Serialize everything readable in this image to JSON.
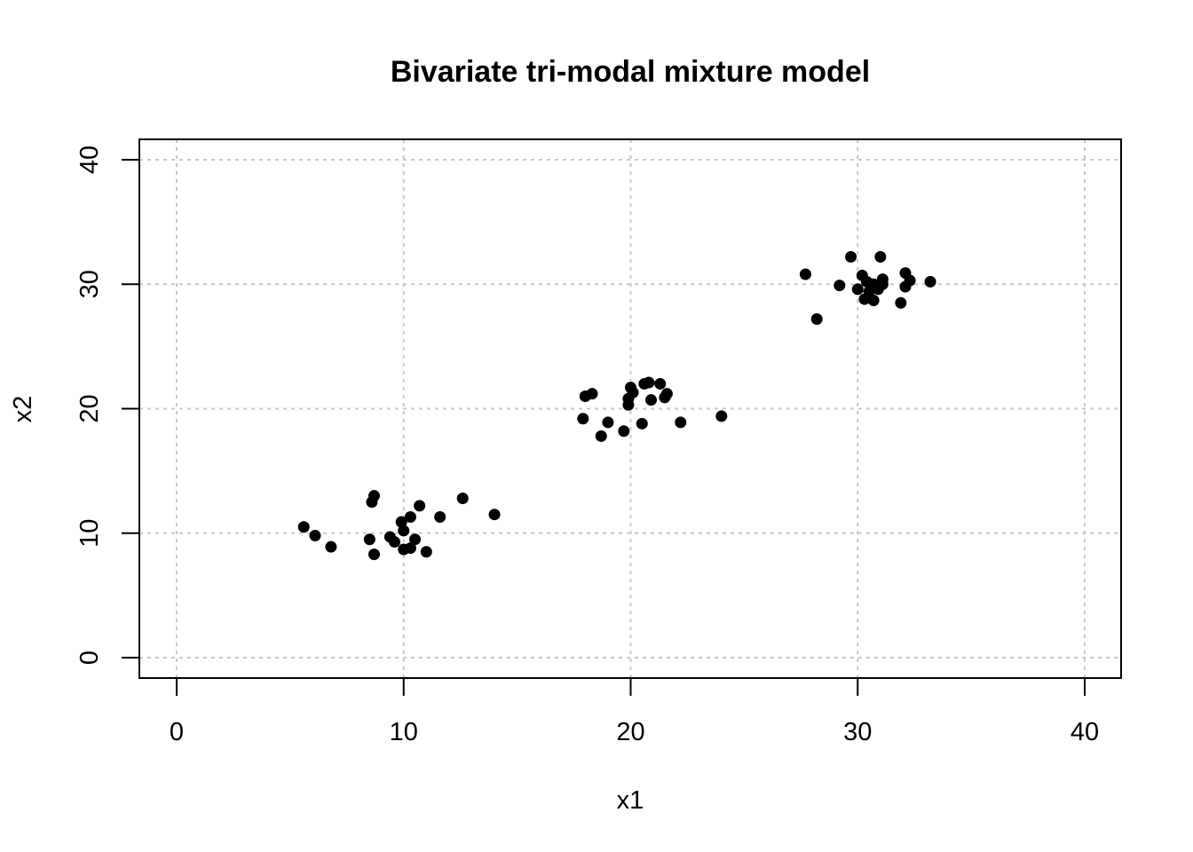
{
  "chart_data": {
    "type": "scatter",
    "title": "Bivariate tri-modal mixture model",
    "xlabel": "x1",
    "ylabel": "x2",
    "xlim": [
      0,
      40
    ],
    "ylim": [
      0,
      40
    ],
    "x_ticks": [
      0,
      10,
      20,
      30,
      40
    ],
    "y_ticks": [
      0,
      10,
      20,
      30,
      40
    ],
    "x_tick_labels": [
      "0",
      "10",
      "20",
      "30",
      "40"
    ],
    "y_tick_labels": [
      "0",
      "10",
      "20",
      "30",
      "40"
    ],
    "grid": true,
    "point_color": "#000000",
    "series": [
      {
        "points": [
          [
            5.6,
            10.5
          ],
          [
            6.1,
            9.8
          ],
          [
            6.8,
            8.9
          ],
          [
            8.5,
            9.5
          ],
          [
            8.6,
            12.5
          ],
          [
            8.7,
            13.0
          ],
          [
            8.7,
            8.3
          ],
          [
            9.4,
            9.7
          ],
          [
            9.6,
            9.3
          ],
          [
            9.9,
            10.9
          ],
          [
            10.0,
            8.7
          ],
          [
            10.0,
            10.2
          ],
          [
            10.3,
            8.8
          ],
          [
            10.3,
            11.3
          ],
          [
            10.5,
            9.5
          ],
          [
            10.7,
            12.2
          ],
          [
            11.0,
            8.5
          ],
          [
            11.6,
            11.3
          ],
          [
            12.6,
            12.8
          ],
          [
            14.0,
            11.5
          ]
        ]
      },
      {
        "points": [
          [
            17.9,
            19.2
          ],
          [
            18.0,
            21.0
          ],
          [
            18.3,
            21.2
          ],
          [
            18.7,
            17.8
          ],
          [
            19.0,
            18.9
          ],
          [
            19.7,
            18.2
          ],
          [
            19.9,
            20.3
          ],
          [
            19.9,
            20.8
          ],
          [
            20.0,
            21.7
          ],
          [
            20.1,
            21.3
          ],
          [
            20.5,
            18.8
          ],
          [
            20.6,
            22.0
          ],
          [
            20.8,
            22.1
          ],
          [
            20.9,
            20.7
          ],
          [
            21.3,
            22.0
          ],
          [
            21.5,
            20.9
          ],
          [
            21.6,
            21.2
          ],
          [
            22.2,
            18.9
          ],
          [
            24.0,
            19.4
          ]
        ]
      },
      {
        "points": [
          [
            27.7,
            30.8
          ],
          [
            28.2,
            27.2
          ],
          [
            29.2,
            29.9
          ],
          [
            29.7,
            32.2
          ],
          [
            30.0,
            29.6
          ],
          [
            30.2,
            30.7
          ],
          [
            30.3,
            28.8
          ],
          [
            30.4,
            30.2
          ],
          [
            30.5,
            29.4
          ],
          [
            30.7,
            28.7
          ],
          [
            30.7,
            30.0
          ],
          [
            30.9,
            29.6
          ],
          [
            31.0,
            32.2
          ],
          [
            31.1,
            30.0
          ],
          [
            31.1,
            30.4
          ],
          [
            31.9,
            28.5
          ],
          [
            32.1,
            30.9
          ],
          [
            32.1,
            29.8
          ],
          [
            32.3,
            30.3
          ],
          [
            33.2,
            30.2
          ]
        ]
      }
    ]
  }
}
